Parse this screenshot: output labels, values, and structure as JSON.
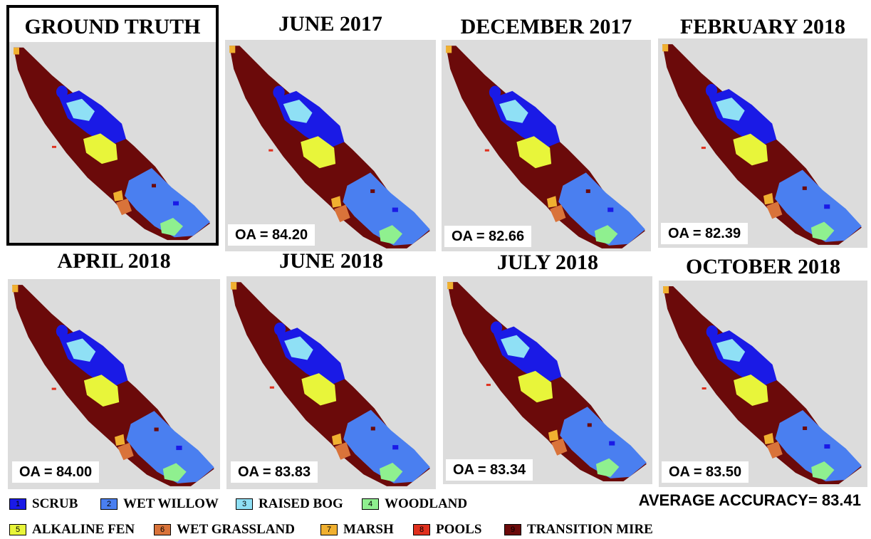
{
  "panels": [
    {
      "title": "GROUND TRUTH",
      "oa": null
    },
    {
      "title": "JUNE 2017",
      "oa": "OA = 84.20"
    },
    {
      "title": "DECEMBER 2017",
      "oa": "OA = 82.66"
    },
    {
      "title": "FEBRUARY 2018",
      "oa": "OA = 82.39"
    },
    {
      "title": "APRIL 2018",
      "oa": "OA = 84.00"
    },
    {
      "title": "JUNE 2018",
      "oa": "OA = 83.83"
    },
    {
      "title": "JULY 2018",
      "oa": "OA = 83.34"
    },
    {
      "title": "OCTOBER 2018",
      "oa": "OA = 83.50"
    }
  ],
  "average": "AVERAGE ACCURACY= 83.41",
  "legend": [
    {
      "num": "1",
      "label": "SCRUB",
      "color": "#1a1ae6"
    },
    {
      "num": "2",
      "label": "WET WILLOW",
      "color": "#4a7ff0"
    },
    {
      "num": "3",
      "label": "RAISED BOG",
      "color": "#8fe0f5"
    },
    {
      "num": "4",
      "label": "WOODLAND",
      "color": "#8ff08f"
    },
    {
      "num": "5",
      "label": "ALKALINE FEN",
      "color": "#e8f53a"
    },
    {
      "num": "6",
      "label": "WET GRASSLAND",
      "color": "#d9733a"
    },
    {
      "num": "7",
      "label": "MARSH",
      "color": "#f0b030"
    },
    {
      "num": "8",
      "label": "POOLS",
      "color": "#e0301e"
    },
    {
      "num": "9",
      "label": "TRANSITION MIRE",
      "color": "#6b0a0a"
    }
  ],
  "background_color": "#dcdcdc"
}
